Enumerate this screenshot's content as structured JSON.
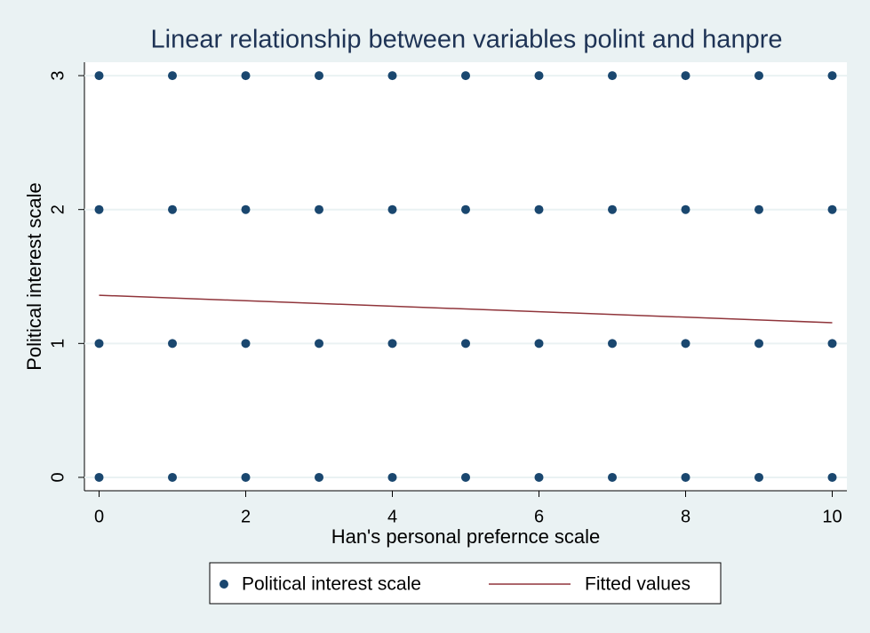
{
  "chart_data": {
    "type": "scatter",
    "title": "Linear relationship between variables polint and hanpre",
    "x_label": "Han's personal prefernce scale",
    "y_label": "Political interest scale",
    "xlim": [
      -0.2,
      10.2
    ],
    "xticks": [
      0,
      2,
      4,
      6,
      8,
      10
    ],
    "ylim": [
      -0.1,
      3.1
    ],
    "yticks": [
      0,
      1,
      2,
      3
    ],
    "grid": true,
    "legend": "bottom",
    "series": [
      {
        "name": "Political interest scale",
        "type": "scatter",
        "color": "#1a476f",
        "x": [
          0,
          0,
          0,
          0,
          1,
          1,
          1,
          1,
          2,
          2,
          2,
          2,
          3,
          3,
          3,
          3,
          4,
          4,
          4,
          4,
          5,
          5,
          5,
          5,
          6,
          6,
          6,
          6,
          7,
          7,
          7,
          7,
          8,
          8,
          8,
          8,
          9,
          9,
          9,
          9,
          10,
          10,
          10,
          10
        ],
        "values": [
          0,
          1,
          2,
          3,
          0,
          1,
          2,
          3,
          0,
          1,
          2,
          3,
          0,
          1,
          2,
          3,
          0,
          1,
          2,
          3,
          0,
          1,
          2,
          3,
          0,
          1,
          2,
          3,
          0,
          1,
          2,
          3,
          0,
          1,
          2,
          3,
          0,
          1,
          2,
          3,
          0,
          1,
          2,
          3
        ]
      },
      {
        "name": "Fitted values",
        "type": "line",
        "color": "#90353b",
        "x": [
          0,
          10
        ],
        "values": [
          1.36,
          1.155
        ]
      }
    ]
  }
}
